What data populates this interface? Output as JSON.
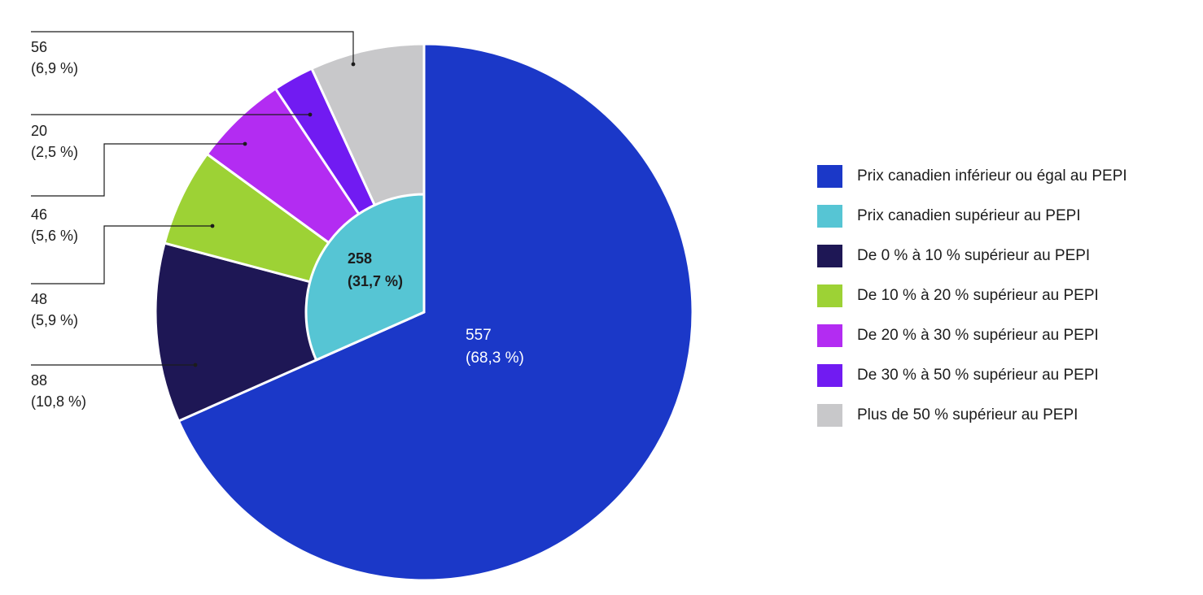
{
  "chart_data": {
    "type": "pie",
    "categories": [
      "Prix canadien inférieur ou égal au PEPI",
      "Prix canadien supérieur au PEPI",
      "De 0 % à 10 % supérieur au PEPI",
      "De 10 % à 20 % supérieur au PEPI",
      "De 20 % à 30 % supérieur au PEPI",
      "De 30 % à 50 % supérieur au PEPI",
      "Plus de 50 % supérieur au PEPI"
    ],
    "outer_ring": [
      {
        "category": "Prix canadien inférieur ou égal au PEPI",
        "value": 557,
        "value_label": "557",
        "percent_label": "(68,3 %)"
      },
      {
        "category": "De 0 % à 10 % supérieur au PEPI",
        "value": 88,
        "value_label": "88",
        "percent_label": "(10,8 %)"
      },
      {
        "category": "De 10 % à 20 % supérieur au PEPI",
        "value": 48,
        "value_label": "48",
        "percent_label": "(5,9 %)"
      },
      {
        "category": "De 20 % à 30 % supérieur au PEPI",
        "value": 46,
        "value_label": "46",
        "percent_label": "(5,6 %)"
      },
      {
        "category": "De 30 % à 50 % supérieur au PEPI",
        "value": 20,
        "value_label": "20",
        "percent_label": "(2,5 %)"
      },
      {
        "category": "Plus de 50 % supérieur au PEPI",
        "value": 56,
        "value_label": "56",
        "percent_label": "(6,9 %)"
      }
    ],
    "inner_slice": {
      "category": "Prix canadien supérieur au PEPI",
      "value": 258,
      "value_label": "258",
      "percent_label": "(31,7 %)"
    },
    "legend_position": "right"
  },
  "colors": {
    "Prix canadien inférieur ou égal au PEPI": "#1b38c8",
    "Prix canadien supérieur au PEPI": "#56c5d4",
    "De 0 % à 10 % supérieur au PEPI": "#1e1755",
    "De 10 % à 20 % supérieur au PEPI": "#9dd235",
    "De 20 % à 30 % supérieur au PEPI": "#b32cf2",
    "De 30 % à 50 % supérieur au PEPI": "#711bf2",
    "Plus de 50 % supérieur au PEPI": "#c8c8ca"
  },
  "legend": [
    "Prix canadien inférieur ou égal au PEPI",
    "Prix canadien supérieur au PEPI",
    "De 0 % à 10 % supérieur au PEPI",
    "De 10 % à 20 % supérieur au PEPI",
    "De 20 % à 30 % supérieur au PEPI",
    "De 30 % à 50 % supérieur au PEPI",
    "Plus de 50 % supérieur au PEPI"
  ]
}
